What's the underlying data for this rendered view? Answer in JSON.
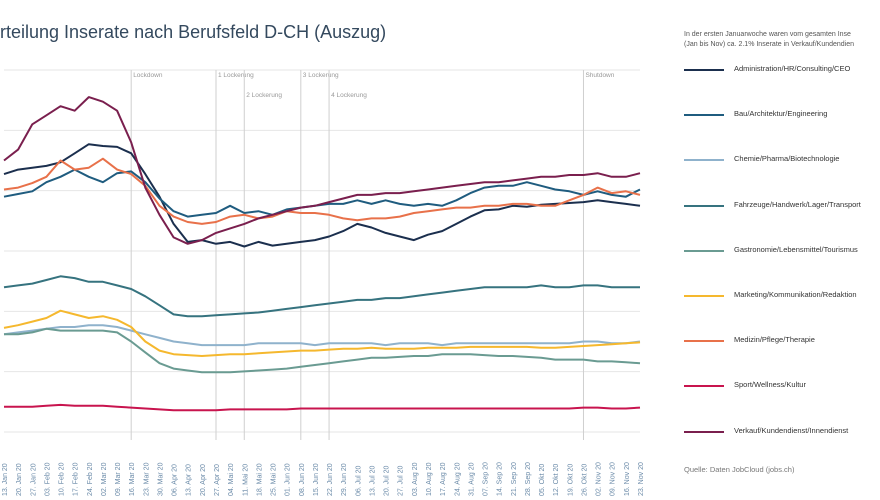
{
  "header": {
    "title": "rteilung Inserate nach Berufsfeld D-CH (Auszug)",
    "note": "In der ersten Januarwoche waren vom gesamten Inse\n(Jan bis Nov) ca. 2.1% Inserate in Verkauf/Kundendien",
    "source": "Quelle: Daten JobCloud (jobs.ch)"
  },
  "chart_data": {
    "type": "line",
    "title": "",
    "xlabel": "",
    "ylabel": "",
    "grid": true,
    "legend_position": "right",
    "x": [
      "13. Jan 20",
      "20. Jan 20",
      "27. Jan 20",
      "03. Feb 20",
      "10. Feb 20",
      "17. Feb 20",
      "24. Feb 20",
      "02. Mar 20",
      "09. Mar 20",
      "16. Mar 20",
      "23. Mar 20",
      "30. Mar 20",
      "06. Apr 20",
      "13. Apr 20",
      "20. Apr 20",
      "27. Apr 20",
      "04. Mai 20",
      "11. Mai 20",
      "18. Mai 20",
      "25. Mai 20",
      "01. Jun 20",
      "08. Jun 20",
      "15. Jun 20",
      "22. Jun 20",
      "29. Jun 20",
      "06. Jul 20",
      "13. Jul 20",
      "20. Jul 20",
      "27. Jul 20",
      "03. Aug 20",
      "10. Aug 20",
      "17. Aug 20",
      "24. Aug 20",
      "31. Aug 20",
      "07. Sep 20",
      "14. Sep 20",
      "21. Sep 20",
      "28. Sep 20",
      "05. Okt 20",
      "12. Okt 20",
      "19. Okt 20",
      "26. Okt 20",
      "02. Nov 20",
      "09. Nov 20",
      "16. Nov 20",
      "23. Nov 20"
    ],
    "ylim": [
      0,
      400
    ],
    "series": [
      {
        "name": "Administration/HR/Consulting/CEO",
        "color": "#1b2f4e",
        "values": [
          285,
          290,
          292,
          294,
          298,
          308,
          318,
          316,
          315,
          308,
          285,
          260,
          230,
          210,
          212,
          208,
          210,
          205,
          210,
          206,
          208,
          210,
          212,
          216,
          222,
          230,
          226,
          220,
          216,
          212,
          218,
          222,
          230,
          238,
          245,
          246,
          250,
          249,
          251,
          252,
          253,
          254,
          256,
          254,
          252,
          250
        ]
      },
      {
        "name": "Bau/Architektur/Engineering",
        "color": "#1f5c7f",
        "values": [
          260,
          263,
          266,
          276,
          282,
          290,
          282,
          276,
          286,
          288,
          276,
          258,
          244,
          238,
          240,
          242,
          250,
          242,
          244,
          240,
          246,
          248,
          250,
          252,
          252,
          256,
          252,
          256,
          252,
          250,
          252,
          250,
          256,
          264,
          270,
          272,
          272,
          276,
          272,
          268,
          266,
          262,
          266,
          262,
          260,
          268
        ]
      },
      {
        "name": "Chemie/Pharma/Biotechnologie",
        "color": "#8fb2cc",
        "values": [
          108,
          110,
          112,
          114,
          116,
          116,
          118,
          118,
          116,
          112,
          108,
          104,
          100,
          98,
          96,
          96,
          96,
          96,
          98,
          98,
          98,
          98,
          96,
          98,
          98,
          98,
          98,
          96,
          98,
          98,
          98,
          96,
          98,
          98,
          98,
          98,
          98,
          98,
          98,
          98,
          98,
          100,
          100,
          98,
          98,
          100
        ]
      },
      {
        "name": "Fahrzeuge/Handwerk/Lager/Transport",
        "color": "#36737f",
        "values": [
          160,
          162,
          164,
          168,
          172,
          170,
          166,
          166,
          162,
          158,
          150,
          140,
          130,
          128,
          128,
          129,
          130,
          131,
          132,
          134,
          136,
          138,
          140,
          142,
          144,
          146,
          146,
          148,
          148,
          150,
          152,
          154,
          156,
          158,
          160,
          160,
          160,
          160,
          162,
          160,
          160,
          162,
          162,
          160,
          160,
          160
        ]
      },
      {
        "name": "Gastronomie/Lebensmittel/Tourismus",
        "color": "#6a9b92",
        "values": [
          108,
          108,
          110,
          114,
          112,
          112,
          112,
          112,
          110,
          100,
          88,
          76,
          70,
          68,
          66,
          66,
          66,
          67,
          68,
          69,
          70,
          72,
          74,
          76,
          78,
          80,
          82,
          82,
          83,
          84,
          84,
          86,
          86,
          86,
          85,
          84,
          84,
          83,
          82,
          80,
          80,
          80,
          78,
          78,
          77,
          76
        ]
      },
      {
        "name": "Marketing/Kommunikation/Redaktion",
        "color": "#f5b82e",
        "values": [
          115,
          118,
          122,
          126,
          134,
          130,
          126,
          128,
          124,
          116,
          100,
          90,
          86,
          85,
          84,
          85,
          86,
          86,
          87,
          88,
          89,
          90,
          90,
          91,
          92,
          92,
          93,
          92,
          92,
          92,
          93,
          93,
          93,
          94,
          94,
          94,
          94,
          94,
          93,
          93,
          94,
          95,
          96,
          97,
          98,
          99
        ]
      },
      {
        "name": "Medizin/Pflege/Therapie",
        "color": "#e8714a",
        "values": [
          268,
          270,
          275,
          282,
          300,
          290,
          292,
          302,
          290,
          285,
          272,
          250,
          238,
          232,
          230,
          232,
          238,
          240,
          236,
          238,
          244,
          242,
          242,
          240,
          236,
          234,
          236,
          236,
          238,
          242,
          244,
          246,
          248,
          248,
          250,
          250,
          252,
          252,
          250,
          250,
          256,
          262,
          270,
          264,
          266,
          262
        ]
      },
      {
        "name": "Sport/Wellness/Kultur",
        "color": "#c8144e",
        "values": [
          28,
          28,
          28,
          29,
          30,
          29,
          29,
          29,
          28,
          27,
          26,
          25,
          24,
          24,
          24,
          24,
          25,
          25,
          25,
          25,
          25,
          26,
          26,
          26,
          26,
          26,
          26,
          26,
          26,
          26,
          26,
          26,
          26,
          26,
          26,
          26,
          26,
          26,
          26,
          26,
          26,
          27,
          27,
          26,
          26,
          27
        ]
      },
      {
        "name": "Verkauf/Kundendienst/Innendienst",
        "color": "#7a1f4e",
        "values": [
          300,
          312,
          340,
          350,
          360,
          355,
          370,
          365,
          355,
          320,
          270,
          240,
          215,
          208,
          212,
          220,
          225,
          230,
          236,
          240,
          244,
          248,
          250,
          254,
          258,
          262,
          262,
          264,
          264,
          266,
          268,
          270,
          272,
          274,
          276,
          276,
          278,
          280,
          282,
          282,
          284,
          284,
          286,
          282,
          282,
          286
        ]
      }
    ],
    "annotations": [
      {
        "label": "Lockdown",
        "x": "16. Mar 20"
      },
      {
        "label": "1 Lockerung",
        "x": "27. Apr 20"
      },
      {
        "label": "2 Lockerung",
        "x": "11. Mai 20"
      },
      {
        "label": "3 Lockerung",
        "x": "08. Jun 20"
      },
      {
        "label": "4 Lockerung",
        "x": "22. Jun 20"
      },
      {
        "label": "Shutdown",
        "x": "26. Okt 20"
      }
    ]
  }
}
